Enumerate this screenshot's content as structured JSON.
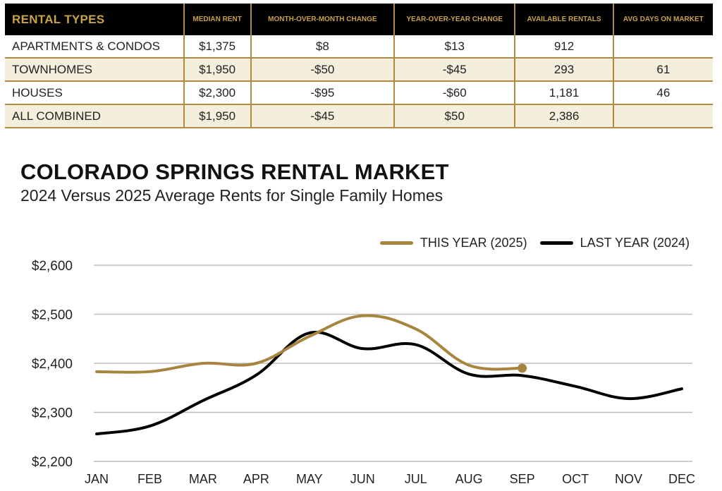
{
  "table": {
    "headers": [
      "RENTAL TYPES",
      "MEDIAN RENT",
      "MONTH-OVER-MONTH CHANGE",
      "YEAR-OVER-YEAR CHANGE",
      "AVAILABLE RENTALS",
      "AVG DAYS ON MARKET"
    ],
    "rows": [
      [
        "APARTMENTS & CONDOS",
        "$1,375",
        "$8",
        "$13",
        "912",
        ""
      ],
      [
        "TOWNHOMES",
        "$1,950",
        "-$50",
        "-$45",
        "293",
        "61"
      ],
      [
        "HOUSES",
        "$2,300",
        "-$95",
        "-$60",
        "1,181",
        "46"
      ],
      [
        "ALL COMBINED",
        "$1,950",
        "-$45",
        "$50",
        "2,386",
        ""
      ]
    ]
  },
  "colors": {
    "gold": "#a8853f",
    "black": "#000000",
    "header_text": "#c9a24a",
    "row_alt": "#f4eedc",
    "grid": "#bdbdbd"
  },
  "chart_data": {
    "type": "line",
    "title": "COLORADO SPRINGS RENTAL MARKET",
    "subtitle": "2024 Versus 2025 Average Rents for Single Family Homes",
    "xlabel": "",
    "ylabel": "",
    "categories": [
      "JAN",
      "FEB",
      "MAR",
      "APR",
      "MAY",
      "JUN",
      "JUL",
      "AUG",
      "SEP",
      "OCT",
      "NOV",
      "DEC"
    ],
    "yticks": [
      "$2,200",
      "$2,300",
      "$2,400",
      "$2,500",
      "$2,600"
    ],
    "ytick_values": [
      2200,
      2300,
      2400,
      2500,
      2600
    ],
    "ylim": [
      2200,
      2600
    ],
    "grid": true,
    "legend_position": "top-right",
    "series": [
      {
        "name": "THIS YEAR (2025)",
        "color": "#a8853f",
        "values": [
          2383,
          2383,
          2400,
          2400,
          2455,
          2497,
          2470,
          2396,
          2390,
          null,
          null,
          null
        ],
        "end_marker": true
      },
      {
        "name": "LAST YEAR (2024)",
        "color": "#000000",
        "values": [
          2256,
          2272,
          2324,
          2376,
          2462,
          2430,
          2438,
          2378,
          2375,
          2353,
          2328,
          2348
        ]
      }
    ]
  }
}
